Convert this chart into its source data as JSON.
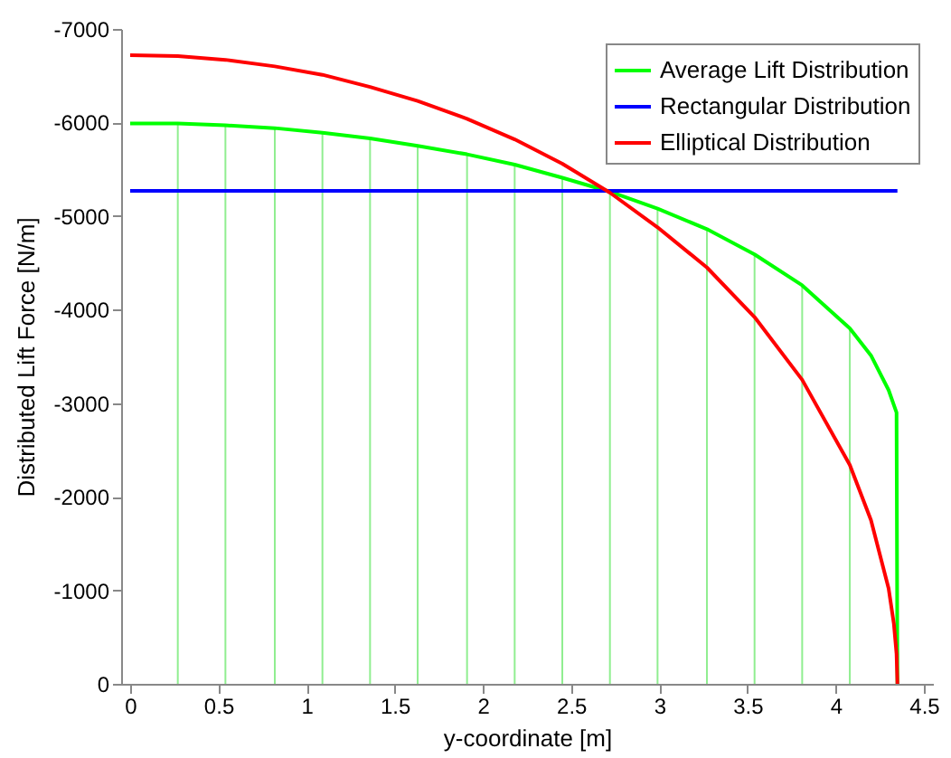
{
  "chart_data": {
    "type": "line",
    "xlabel": "y-coordinate [m]",
    "ylabel": "Distributed Lift Force [N/m]",
    "xlim": [
      0,
      4.5
    ],
    "xticks": [
      0,
      0.5,
      1,
      1.5,
      2,
      2.5,
      3,
      3.5,
      4,
      4.5
    ],
    "ylim": [
      0,
      -7000
    ],
    "yticks": [
      0,
      -1000,
      -2000,
      -3000,
      -4000,
      -5000,
      -6000,
      -7000
    ],
    "grid": false,
    "legend": "top right",
    "series": [
      {
        "name": "Average Lift Distribution",
        "color": "#00ff00",
        "x": [
          0,
          0.27,
          0.54,
          0.82,
          1.09,
          1.36,
          1.63,
          1.91,
          2.18,
          2.45,
          2.72,
          2.99,
          3.27,
          3.54,
          3.81,
          4.08,
          4.2,
          4.3,
          4.345,
          4.35
        ],
        "values": [
          -5990,
          -5990,
          -5970,
          -5940,
          -5890,
          -5830,
          -5750,
          -5660,
          -5550,
          -5410,
          -5260,
          -5080,
          -4860,
          -4590,
          -4260,
          -3800,
          -3510,
          -3140,
          -2900,
          0
        ]
      },
      {
        "name": "Rectangular Distribution",
        "color": "#0000ff",
        "x": [
          0,
          4.35
        ],
        "values": [
          -5270,
          -5270
        ]
      },
      {
        "name": "Elliptical Distribution",
        "color": "#ff0000",
        "x": [
          0,
          0.27,
          0.54,
          0.82,
          1.09,
          1.36,
          1.63,
          1.91,
          2.18,
          2.45,
          2.72,
          2.99,
          3.27,
          3.54,
          3.81,
          4.08,
          4.2,
          4.3,
          4.33,
          4.345,
          4.35
        ],
        "values": [
          -6720,
          -6710,
          -6670,
          -6600,
          -6510,
          -6380,
          -6230,
          -6040,
          -5820,
          -5560,
          -5250,
          -4880,
          -4450,
          -3920,
          -3250,
          -2340,
          -1750,
          -1020,
          -640,
          -320,
          0
        ]
      },
      {
        "type": "bar",
        "color": "#90ee90",
        "x": [
          0.27,
          0.54,
          0.82,
          1.09,
          1.36,
          1.63,
          1.91,
          2.18,
          2.45,
          2.72,
          2.99,
          3.27,
          3.54,
          3.81,
          4.08
        ],
        "values": [
          -5990,
          -5970,
          -5940,
          -5890,
          -5830,
          -5750,
          -5660,
          -5550,
          -5410,
          -5260,
          -5080,
          -4860,
          -4590,
          -4260,
          -3800
        ]
      }
    ]
  }
}
